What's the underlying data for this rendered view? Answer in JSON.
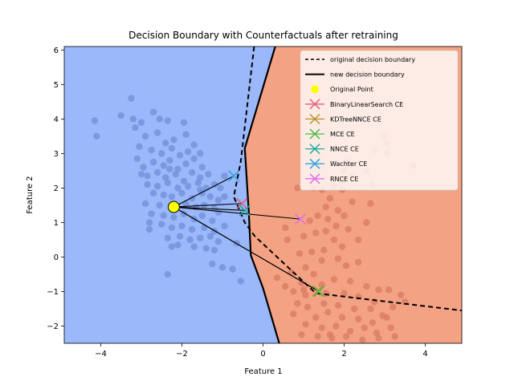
{
  "chart_data": {
    "type": "scatter",
    "title": "Decision Boundary with Counterfactuals after retraining",
    "xlabel": "Feature 1",
    "ylabel": "Feature 2",
    "xlim": [
      -4.9,
      4.9
    ],
    "ylim": [
      -2.5,
      6.1
    ],
    "xticks": [
      -4,
      -2,
      0,
      2,
      4
    ],
    "yticks": [
      -2,
      -1,
      0,
      1,
      2,
      3,
      4,
      5,
      6
    ],
    "colors": {
      "class0_region": "#9bb8fa",
      "class1_region": "#f4a284",
      "class0_points": "#6f8fd8",
      "class1_points": "#d97a64",
      "original_point": "#ffff00"
    },
    "original_boundary": [
      [
        -0.22,
        6.1
      ],
      [
        -0.55,
        2.75
      ],
      [
        -0.72,
        1.75
      ],
      [
        -0.45,
        1.0
      ],
      [
        -0.2,
        0.6
      ],
      [
        1.3,
        -1.05
      ],
      [
        4.9,
        -1.55
      ]
    ],
    "new_boundary": [
      [
        0.3,
        6.1
      ],
      [
        -0.45,
        3.15
      ],
      [
        -0.35,
        1.3
      ],
      [
        -0.3,
        0.05
      ],
      [
        0.0,
        -0.9
      ],
      [
        0.4,
        -2.5
      ]
    ],
    "original_point": {
      "label": "Original Point",
      "x": -2.2,
      "y": 1.45
    },
    "counterfactuals": [
      {
        "label": "BinaryLinearSearch CE",
        "color": "#e0607e",
        "x": -0.52,
        "y": 1.55
      },
      {
        "label": "KDTreeNNCE CE",
        "color": "#b8912e",
        "x": 1.35,
        "y": -0.98
      },
      {
        "label": "MCE CE",
        "color": "#4ab84a",
        "x": 1.38,
        "y": -1.0
      },
      {
        "label": "NNCE CE",
        "color": "#20a89c",
        "x": -0.45,
        "y": 1.35
      },
      {
        "label": "Wachter CE",
        "color": "#33a1e0",
        "x": -0.72,
        "y": 2.35
      },
      {
        "label": "RNCE CE",
        "color": "#e070e8",
        "x": 0.92,
        "y": 1.1
      }
    ],
    "legend": {
      "placement": "top-right",
      "entries": [
        {
          "label": "original decision boundary",
          "style": "dashed"
        },
        {
          "label": "new decision boundary",
          "style": "solid"
        },
        {
          "label": "Original Point",
          "style": "point"
        },
        {
          "label": "BinaryLinearSearch CE",
          "style": "x"
        },
        {
          "label": "KDTreeNNCE CE",
          "style": "x"
        },
        {
          "label": "MCE CE",
          "style": "x"
        },
        {
          "label": "NNCE CE",
          "style": "x"
        },
        {
          "label": "Wachter CE",
          "style": "x"
        },
        {
          "label": "RNCE CE",
          "style": "x"
        }
      ]
    },
    "class0_points": [
      [
        -4.15,
        3.95
      ],
      [
        -4.1,
        3.5
      ],
      [
        -3.5,
        4.1
      ],
      [
        -3.25,
        4.6
      ],
      [
        -3.2,
        4.0
      ],
      [
        -3.0,
        3.9
      ],
      [
        -2.7,
        4.2
      ],
      [
        -2.55,
        4.0
      ],
      [
        -2.35,
        3.95
      ],
      [
        -1.95,
        3.9
      ],
      [
        -3.15,
        3.75
      ],
      [
        -2.9,
        3.5
      ],
      [
        -2.6,
        3.6
      ],
      [
        -2.4,
        3.3
      ],
      [
        -2.2,
        3.4
      ],
      [
        -1.9,
        3.55
      ],
      [
        -1.7,
        3.25
      ],
      [
        -3.05,
        3.2
      ],
      [
        -2.75,
        3.1
      ],
      [
        -2.5,
        3.0
      ],
      [
        -2.25,
        3.15
      ],
      [
        -2.05,
        2.95
      ],
      [
        -1.85,
        3.05
      ],
      [
        -1.55,
        3.0
      ],
      [
        -3.1,
        2.85
      ],
      [
        -2.95,
        2.6
      ],
      [
        -2.7,
        2.75
      ],
      [
        -2.45,
        2.65
      ],
      [
        -2.3,
        2.8
      ],
      [
        -2.1,
        2.55
      ],
      [
        -1.9,
        2.7
      ],
      [
        -1.7,
        2.85
      ],
      [
        -1.5,
        2.6
      ],
      [
        -3.0,
        2.4
      ],
      [
        -2.85,
        2.35
      ],
      [
        -2.6,
        2.45
      ],
      [
        -2.4,
        2.3
      ],
      [
        -2.15,
        2.4
      ],
      [
        -1.95,
        2.2
      ],
      [
        -1.75,
        2.45
      ],
      [
        -1.55,
        2.3
      ],
      [
        -1.35,
        2.4
      ],
      [
        -2.85,
        2.1
      ],
      [
        -2.6,
        2.05
      ],
      [
        -2.35,
        2.15
      ],
      [
        -2.1,
        2.0
      ],
      [
        -1.85,
        2.05
      ],
      [
        -1.6,
        2.15
      ],
      [
        -1.4,
        2.0
      ],
      [
        -1.2,
        2.1
      ],
      [
        -0.95,
        2.35
      ],
      [
        -2.7,
        1.85
      ],
      [
        -2.45,
        1.8
      ],
      [
        -2.25,
        1.75
      ],
      [
        -2.0,
        1.85
      ],
      [
        -1.75,
        1.7
      ],
      [
        -1.5,
        1.85
      ],
      [
        -1.3,
        1.75
      ],
      [
        -1.1,
        1.65
      ],
      [
        -2.9,
        1.55
      ],
      [
        -2.55,
        1.5
      ],
      [
        -1.9,
        1.55
      ],
      [
        -1.65,
        1.45
      ],
      [
        -1.45,
        1.5
      ],
      [
        -1.2,
        1.4
      ],
      [
        -0.95,
        1.75
      ],
      [
        -2.75,
        1.25
      ],
      [
        -2.45,
        1.2
      ],
      [
        -2.2,
        1.15
      ],
      [
        -1.95,
        1.25
      ],
      [
        -1.7,
        1.1
      ],
      [
        -1.5,
        1.2
      ],
      [
        -1.25,
        1.05
      ],
      [
        -2.8,
        1.0
      ],
      [
        -2.5,
        0.95
      ],
      [
        -2.25,
        0.85
      ],
      [
        -2.0,
        0.9
      ],
      [
        -1.75,
        0.8
      ],
      [
        -1.45,
        0.85
      ],
      [
        -1.2,
        0.75
      ],
      [
        -0.95,
        0.9
      ],
      [
        -2.8,
        0.8
      ],
      [
        -2.35,
        0.55
      ],
      [
        -2.05,
        0.6
      ],
      [
        -1.8,
        0.5
      ],
      [
        -1.55,
        0.55
      ],
      [
        -1.3,
        0.6
      ],
      [
        -1.1,
        0.45
      ],
      [
        -0.65,
        0.4
      ],
      [
        -2.1,
        0.35
      ],
      [
        -1.7,
        0.3
      ],
      [
        -1.4,
        0.25
      ],
      [
        -1.2,
        0.2
      ],
      [
        -2.25,
        0.3
      ],
      [
        -1.25,
        -0.2
      ],
      [
        -0.75,
        -0.35
      ],
      [
        -1.0,
        -0.3
      ],
      [
        -0.55,
        -0.7
      ],
      [
        -2.35,
        -0.5
      ],
      [
        -1.1,
        1.3
      ],
      [
        -1.55,
        1.95
      ],
      [
        -2.3,
        2.55
      ],
      [
        -1.05,
        2.0
      ]
    ],
    "class1_points": [
      [
        3.0,
        3.5
      ],
      [
        3.05,
        3.3
      ],
      [
        3.05,
        3.0
      ],
      [
        2.75,
        3.1
      ],
      [
        3.7,
        2.65
      ],
      [
        2.1,
        2.75
      ],
      [
        2.2,
        2.35
      ],
      [
        1.95,
        2.2
      ],
      [
        1.75,
        2.05
      ],
      [
        2.55,
        2.5
      ],
      [
        2.0,
        2.5
      ],
      [
        2.7,
        2.1
      ],
      [
        1.25,
        2.0
      ],
      [
        0.85,
        2.0
      ],
      [
        1.45,
        1.95
      ],
      [
        1.65,
        1.7
      ],
      [
        1.95,
        1.95
      ],
      [
        2.2,
        1.6
      ],
      [
        2.65,
        1.55
      ],
      [
        1.55,
        1.45
      ],
      [
        1.85,
        1.35
      ],
      [
        2.0,
        1.2
      ],
      [
        1.6,
        1.1
      ],
      [
        1.35,
        1.2
      ],
      [
        1.15,
        1.05
      ],
      [
        1.8,
        0.9
      ],
      [
        2.1,
        0.8
      ],
      [
        1.55,
        0.75
      ],
      [
        1.3,
        0.7
      ],
      [
        1.0,
        0.6
      ],
      [
        0.55,
        0.85
      ],
      [
        0.6,
        0.5
      ],
      [
        1.75,
        0.5
      ],
      [
        1.95,
        0.3
      ],
      [
        1.5,
        0.2
      ],
      [
        1.2,
        0.15
      ],
      [
        0.9,
        0.1
      ],
      [
        1.45,
        -0.1
      ],
      [
        1.05,
        -0.3
      ],
      [
        1.85,
        -0.05
      ],
      [
        2.05,
        -0.25
      ],
      [
        2.35,
        -0.15
      ],
      [
        0.7,
        -0.45
      ],
      [
        0.35,
        -0.6
      ],
      [
        1.25,
        -0.5
      ],
      [
        0.95,
        -0.75
      ],
      [
        0.55,
        -0.85
      ],
      [
        1.45,
        -0.8
      ],
      [
        1.75,
        -0.65
      ],
      [
        2.15,
        -0.7
      ],
      [
        2.55,
        -0.85
      ],
      [
        2.85,
        -0.95
      ],
      [
        3.1,
        -0.95
      ],
      [
        1.05,
        -1.1
      ],
      [
        1.55,
        -1.05
      ],
      [
        2.0,
        -1.05
      ],
      [
        2.35,
        -1.15
      ],
      [
        2.75,
        -1.3
      ],
      [
        3.2,
        -1.45
      ],
      [
        3.5,
        -1.3
      ],
      [
        0.85,
        -1.35
      ],
      [
        1.1,
        -1.45
      ],
      [
        1.5,
        -1.35
      ],
      [
        1.85,
        -1.4
      ],
      [
        2.25,
        -1.5
      ],
      [
        2.65,
        -1.5
      ],
      [
        2.95,
        -1.7
      ],
      [
        0.75,
        -1.65
      ],
      [
        1.3,
        -1.75
      ],
      [
        1.6,
        -1.6
      ],
      [
        1.95,
        -1.75
      ],
      [
        2.35,
        -1.8
      ],
      [
        2.7,
        -1.9
      ],
      [
        3.05,
        -1.75
      ],
      [
        1.05,
        -1.95
      ],
      [
        1.45,
        -2.05
      ],
      [
        1.8,
        -2.0
      ],
      [
        2.15,
        -2.15
      ],
      [
        2.5,
        -2.05
      ],
      [
        2.8,
        -2.2
      ],
      [
        3.15,
        -2.05
      ],
      [
        0.95,
        -2.25
      ],
      [
        1.35,
        -2.3
      ],
      [
        1.7,
        -2.35
      ],
      [
        2.05,
        -2.3
      ],
      [
        2.45,
        -2.4
      ],
      [
        2.85,
        -2.35
      ],
      [
        3.25,
        -2.3
      ],
      [
        1.0,
        -0.95
      ],
      [
        2.35,
        0.5
      ],
      [
        2.55,
        1.0
      ],
      [
        3.4,
        -1.1
      ],
      [
        0.75,
        -1.0
      ],
      [
        1.65,
        -2.25
      ]
    ]
  }
}
